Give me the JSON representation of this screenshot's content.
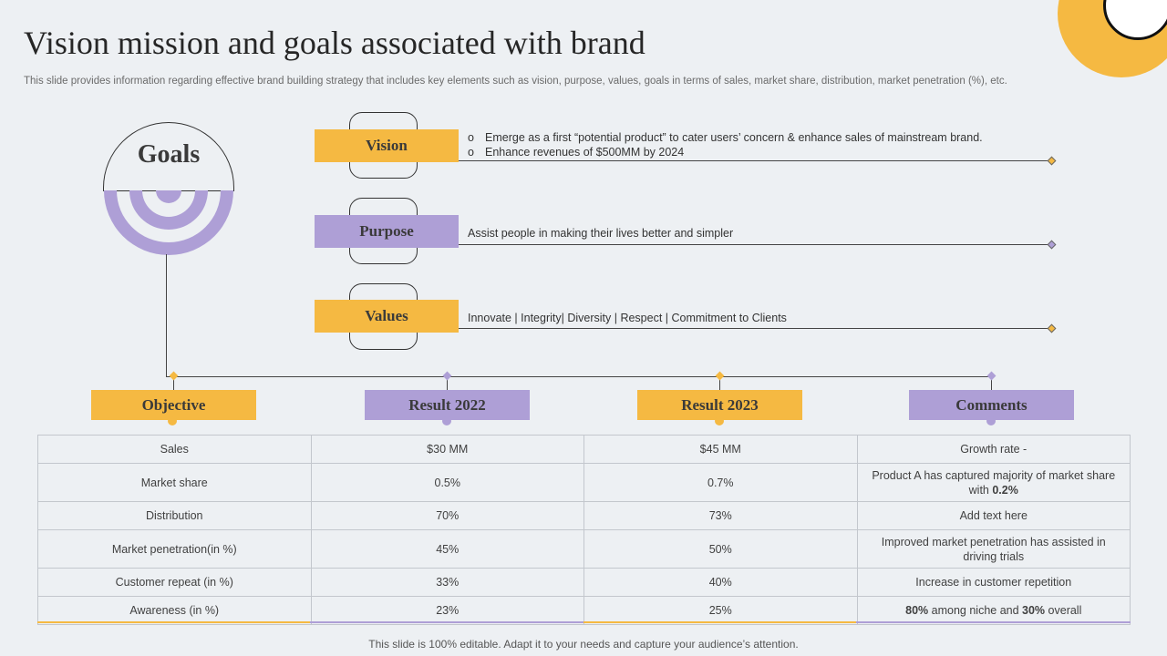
{
  "title": "Vision mission and goals associated with brand",
  "subtitle": "This slide provides information regarding effective brand building strategy that includes key elements such as vision, purpose, values, goals in terms of sales, market share, distribution, market penetration (%), etc.",
  "goals_label": "Goals",
  "colors": {
    "yellow": "#f5b942",
    "purple": "#ae9fd6"
  },
  "vision": {
    "label": "Vision",
    "bullet_marker": "o",
    "bullets": [
      "Emerge as a first “potential product” to cater users’ concern & enhance sales of mainstream brand.",
      "Enhance revenues  of $500MM by 2024"
    ]
  },
  "purpose": {
    "label": "Purpose",
    "text": "Assist people in making their lives  better and simpler"
  },
  "values": {
    "label": "Values",
    "text": "Innovate  | Integrity|  Diversity  | Respect |  Commitment to Clients"
  },
  "table": {
    "headers": [
      "Objective",
      "Result 2022",
      "Result 2023",
      "Comments"
    ],
    "rows": [
      {
        "objective": "Sales",
        "r2022": "$30 MM",
        "r2023": "$45 MM",
        "comment": "Growth rate -"
      },
      {
        "objective": "Market share",
        "r2022": "0.5%",
        "r2023": "0.7%",
        "comment": "Product A has captured majority of market share with ",
        "comment_bold": "0.2%"
      },
      {
        "objective": "Distribution",
        "r2022": "70%",
        "r2023": "73%",
        "comment": "Add text here"
      },
      {
        "objective": "Market penetration(in  %)",
        "r2022": "45%",
        "r2023": "50%",
        "comment": "Improved  market penetration has assisted in driving trials"
      },
      {
        "objective": "Customer repeat  (in %)",
        "r2022": "33%",
        "r2023": "40%",
        "comment": "Increase in customer repetition"
      },
      {
        "objective": "Awareness  (in %)",
        "r2022": "23%",
        "r2023": "25%",
        "comment_parts": [
          "80%",
          " among niche and ",
          "30%",
          " overall"
        ]
      }
    ]
  },
  "footer": "This slide is 100% editable. Adapt it to your needs and capture your audience’s attention."
}
